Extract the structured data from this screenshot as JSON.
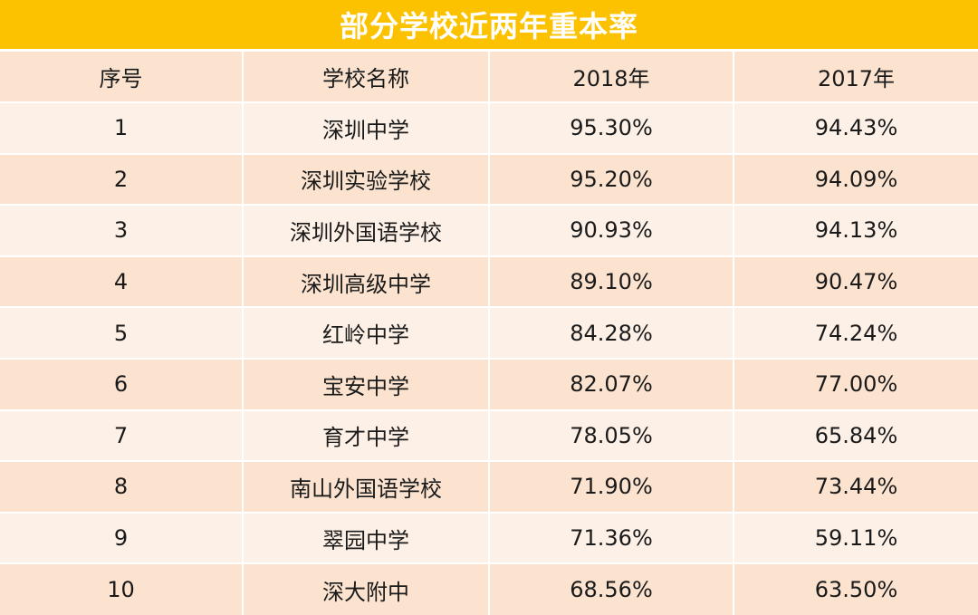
{
  "title": "部分学校近两年重本率",
  "headers": [
    "序号",
    "学校名称",
    "2018年",
    "2017年"
  ],
  "rows": [
    {
      "no": "1",
      "school": "深圳中学",
      "y2018": "95.30%",
      "y2017": "94.43%"
    },
    {
      "no": "2",
      "school": "深圳实验学校",
      "y2018": "95.20%",
      "y2017": "94.09%"
    },
    {
      "no": "3",
      "school": "深圳外国语学校",
      "y2018": "90.93%",
      "y2017": "94.13%"
    },
    {
      "no": "4",
      "school": "深圳高级中学",
      "y2018": "89.10%",
      "y2017": "90.47%"
    },
    {
      "no": "5",
      "school": "红岭中学",
      "y2018": "84.28%",
      "y2017": "74.24%"
    },
    {
      "no": "6",
      "school": "宝安中学",
      "y2018": "82.07%",
      "y2017": "77.00%"
    },
    {
      "no": "7",
      "school": "育才中学",
      "y2018": "78.05%",
      "y2017": "65.84%"
    },
    {
      "no": "8",
      "school": "南山外国语学校",
      "y2018": "71.90%",
      "y2017": "73.44%"
    },
    {
      "no": "9",
      "school": "翠园中学",
      "y2018": "71.36%",
      "y2017": "59.11%"
    },
    {
      "no": "10",
      "school": "深大附中",
      "y2018": "68.56%",
      "y2017": "63.50%"
    }
  ],
  "colors": {
    "title_bg": "#fcc200",
    "title_text": "#ffffff",
    "row_light": "#fdf0e6",
    "row_dark": "#fbe3cf"
  }
}
